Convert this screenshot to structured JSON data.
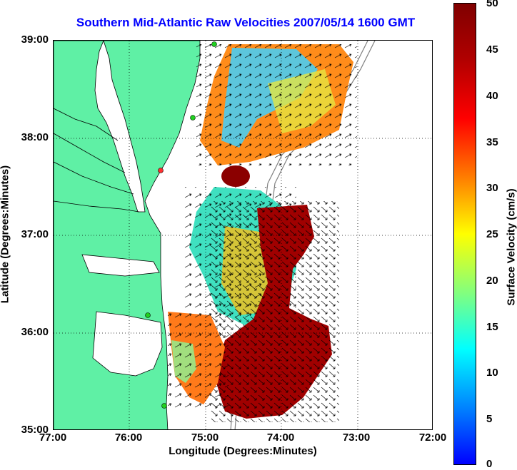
{
  "title": "Southern Mid-Atlantic Raw Velocities 2007/05/14 1600 GMT",
  "axes": {
    "xlabel": "Longitude (Degrees:Minutes)",
    "ylabel": "Latitude (Degrees:Minutes)",
    "xticks": [
      "77:00",
      "76:00",
      "75:00",
      "74:00",
      "73:00",
      "72:00"
    ],
    "yticks": [
      "39:00",
      "38:00",
      "37:00",
      "36:00",
      "35:00"
    ],
    "xlim": [
      -77,
      -72
    ],
    "ylim": [
      35,
      39
    ]
  },
  "colorbar": {
    "label": "Surface Velocity (cm/s)",
    "ticks": [
      "50",
      "45",
      "40",
      "35",
      "30",
      "25",
      "20",
      "15",
      "10",
      "5",
      "0"
    ],
    "range": [
      0,
      50
    ],
    "colormap": "jet"
  },
  "colors": {
    "land": "#5ff0a5",
    "ocean": "#ffffff",
    "title": "#0000ff",
    "arrows": "#000000",
    "bathymetry": "#808080"
  }
}
